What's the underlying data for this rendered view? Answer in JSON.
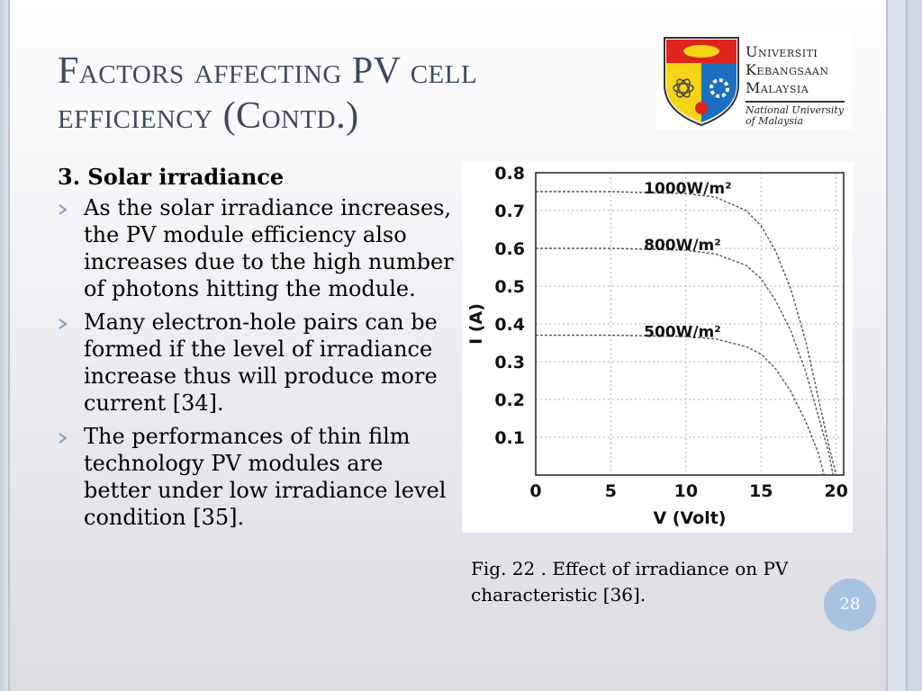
{
  "slide": {
    "title_line1": "Factors affecting PV cell",
    "title_line2": "efficiency (Contd.)",
    "page_number": "28"
  },
  "logo": {
    "line1": "Universiti",
    "line2": "Kebangsaan",
    "line3": "Malaysia",
    "sub1": "National University",
    "sub2": "of Malaysia",
    "colors": {
      "red": "#e0231c",
      "yellow": "#f7d417",
      "blue": "#1b6fc0"
    }
  },
  "content": {
    "heading": "3. Solar irradiance",
    "bullets": [
      "As the solar irradiance increases, the PV module efficiency also increases due to the high number of photons hitting the module.",
      "Many electron-hole pairs can be formed if the level of irradiance increase thus will produce more current [34].",
      "The performances of thin film technology PV modules are better under low irradiance level condition [35]."
    ]
  },
  "figure": {
    "caption": "Fig. 22 . Effect of irradiance on PV characteristic [36]."
  },
  "chart_data": {
    "type": "line",
    "xlabel": "V (Volt)",
    "ylabel": "I (A)",
    "xlim": [
      0,
      20.5
    ],
    "ylim": [
      0,
      0.8
    ],
    "x_ticks": [
      "0",
      "5",
      "10",
      "15",
      "20"
    ],
    "y_ticks": [
      "0.1",
      "0.2",
      "0.3",
      "0.4",
      "0.5",
      "0.6",
      "0.7",
      "0.8"
    ],
    "grid": true,
    "series": [
      {
        "name": "1000W/m²",
        "x": [
          0,
          5,
          10,
          12,
          14,
          15,
          16,
          17,
          18,
          19,
          19.5,
          20
        ],
        "y": [
          0.75,
          0.75,
          0.745,
          0.735,
          0.7,
          0.66,
          0.59,
          0.49,
          0.35,
          0.17,
          0.08,
          0.0
        ]
      },
      {
        "name": "800W/m²",
        "x": [
          0,
          5,
          10,
          12,
          14,
          15,
          16,
          17,
          18,
          19,
          19.5,
          19.8
        ],
        "y": [
          0.6,
          0.6,
          0.595,
          0.585,
          0.555,
          0.52,
          0.46,
          0.38,
          0.27,
          0.13,
          0.06,
          0.0
        ]
      },
      {
        "name": "500W/m²",
        "x": [
          0,
          5,
          10,
          12,
          14,
          15,
          16,
          17,
          18,
          18.8,
          19.2
        ],
        "y": [
          0.37,
          0.37,
          0.367,
          0.36,
          0.34,
          0.32,
          0.28,
          0.22,
          0.14,
          0.06,
          0.0
        ]
      }
    ]
  }
}
